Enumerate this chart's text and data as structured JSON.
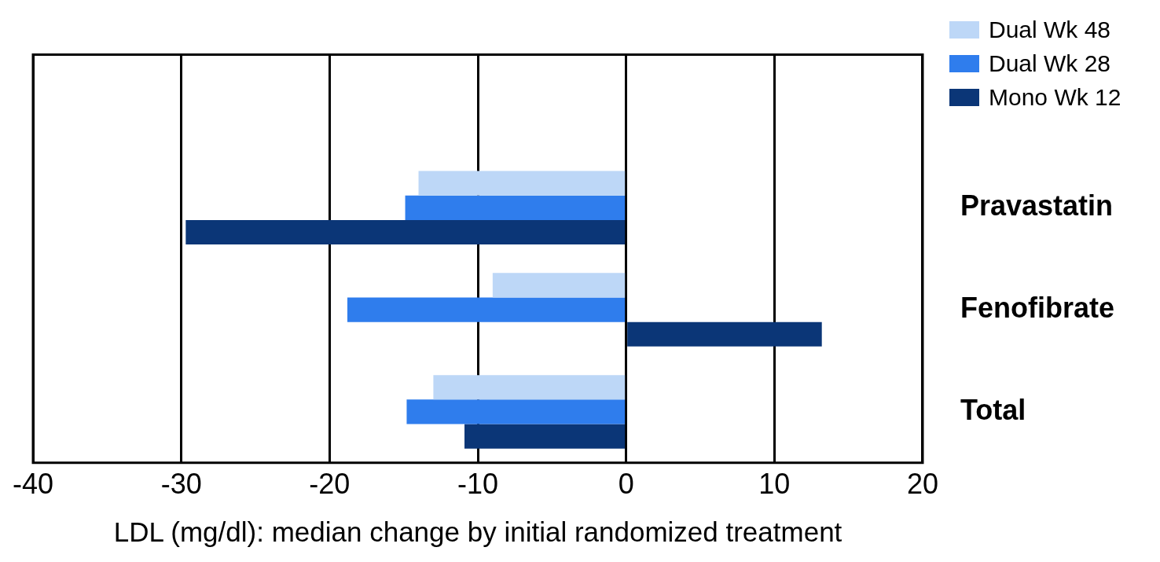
{
  "chart_data": {
    "type": "bar",
    "orientation": "horizontal",
    "xlabel": "LDL (mg/dl): median change by initial randomized treatment",
    "categories": [
      null,
      "Pravastatin",
      "Fenofibrate",
      "Total"
    ],
    "series": [
      {
        "name": "Dual Wk 48",
        "color": "#bdd7f7",
        "values": [
          null,
          -14,
          -9,
          -13
        ]
      },
      {
        "name": "Dual Wk 28",
        "color": "#2f7ded",
        "values": [
          null,
          -14.9,
          -18.8,
          -14.8
        ]
      },
      {
        "name": "Mono Wk 12",
        "color": "#0b3677",
        "values": [
          null,
          -29.7,
          13.2,
          -10.9
        ]
      }
    ],
    "xlim": [
      -40,
      20
    ],
    "xticks": [
      -40,
      -30,
      -20,
      -10,
      0,
      10,
      20
    ],
    "grid": "x",
    "legend": "top right"
  }
}
